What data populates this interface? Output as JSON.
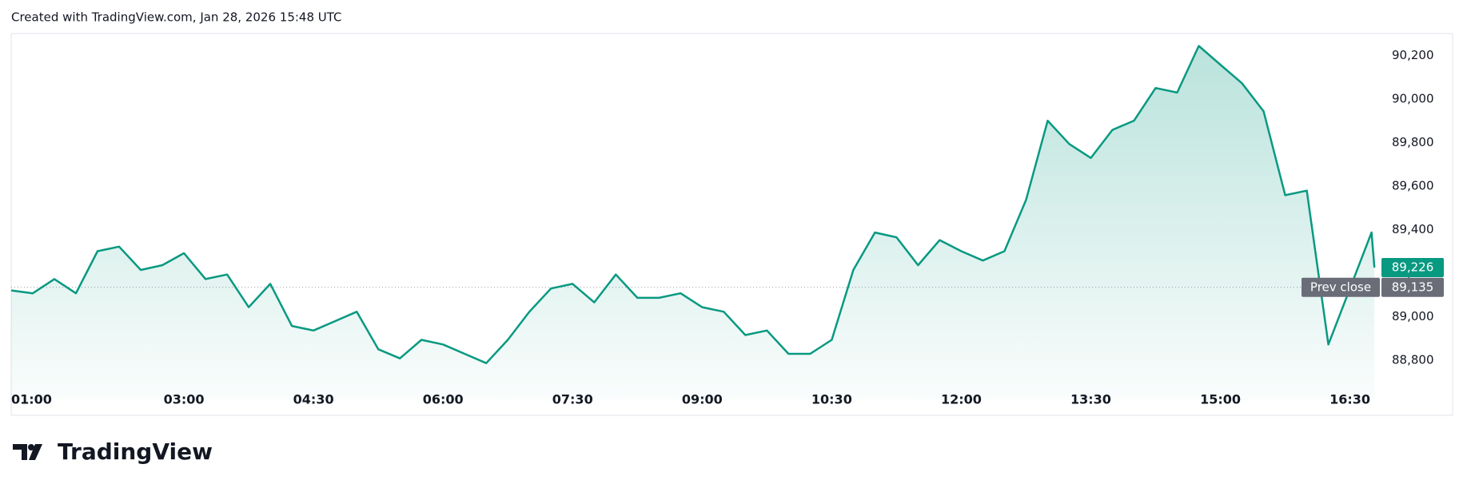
{
  "header": "Created with TradingView.com, Jan 28, 2026 15:48 UTC",
  "brand": "TradingView",
  "chart_data": {
    "type": "area",
    "series": [
      {
        "name": null,
        "color": "#089981",
        "x": [
          "01:00",
          "01:15",
          "01:30",
          "01:45",
          "02:00",
          "02:15",
          "02:30",
          "02:45",
          "03:00",
          "03:15",
          "03:30",
          "03:45",
          "04:00",
          "04:15",
          "04:30",
          "04:45",
          "05:00",
          "05:15",
          "05:30",
          "05:45",
          "06:00",
          "06:15",
          "06:30",
          "06:45",
          "07:00",
          "07:15",
          "07:30",
          "07:45",
          "08:00",
          "08:15",
          "08:30",
          "08:45",
          "09:00",
          "09:15",
          "09:30",
          "09:45",
          "10:00",
          "10:15",
          "10:30",
          "10:45",
          "11:00",
          "11:15",
          "11:30",
          "11:45",
          "12:00",
          "12:15",
          "12:30",
          "12:45",
          "13:00",
          "13:15",
          "13:30",
          "13:45",
          "14:00",
          "14:15",
          "14:30",
          "14:45",
          "15:00",
          "15:15",
          "15:30",
          "15:45",
          "16:00",
          "16:15",
          "16:30",
          "16:45",
          "16:47"
        ],
        "values": [
          89121,
          89108,
          89173,
          89108,
          89301,
          89322,
          89215,
          89237,
          89292,
          89173,
          89194,
          89044,
          89151,
          88958,
          88937,
          88980,
          89023,
          88851,
          88809,
          88894,
          88873,
          88830,
          88787,
          88894,
          89023,
          89130,
          89151,
          89066,
          89194,
          89087,
          89087,
          89108,
          89044,
          89023,
          88916,
          88937,
          88830,
          88830,
          88894,
          89215,
          89387,
          89365,
          89237,
          89352,
          89301,
          89258,
          89301,
          89536,
          89900,
          89793,
          89729,
          89858,
          89900,
          90050,
          90029,
          90243,
          90157,
          90072,
          89943,
          89558,
          89579,
          88873,
          89130,
          89387,
          89226
        ]
      }
    ],
    "xlim": [
      "01:00",
      "16:48"
    ],
    "xticks": [
      "01:00",
      "03:00",
      "04:30",
      "06:00",
      "07:30",
      "09:00",
      "10:30",
      "12:00",
      "13:30",
      "15:00",
      "16:30"
    ],
    "ylim": [
      88720,
      90300
    ],
    "yticks": [
      {
        "value": 88800,
        "label": "88,800"
      },
      {
        "value": 89000,
        "label": "89,000"
      },
      {
        "value": 89200,
        "label": "89,200"
      },
      {
        "value": 89400,
        "label": "89,400"
      },
      {
        "value": 89600,
        "label": "89,600"
      },
      {
        "value": 89800,
        "label": "89,800"
      },
      {
        "value": 90000,
        "label": "90,000"
      },
      {
        "value": 90200,
        "label": "90,200"
      }
    ],
    "last_price": {
      "value": 89226,
      "label": "89,226"
    },
    "prev_close": {
      "name": "Prev close",
      "value": 89135,
      "label": "89,135"
    }
  }
}
